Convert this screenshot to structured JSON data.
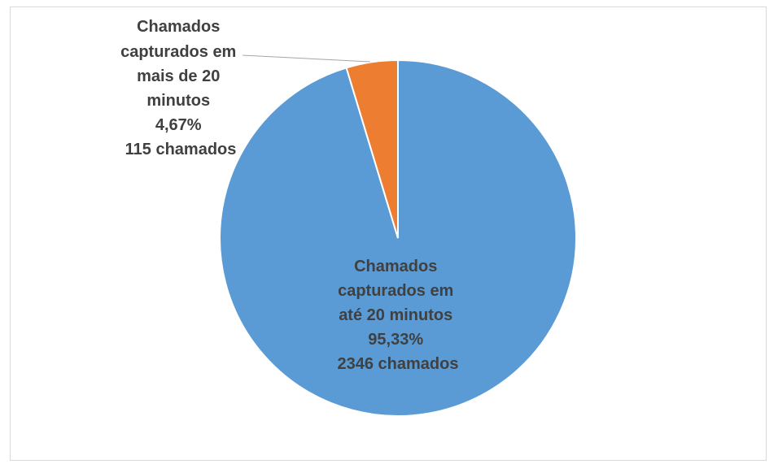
{
  "chart_data": {
    "type": "pie",
    "title": "",
    "slices": [
      {
        "key": "within",
        "value": 2346,
        "percent": 95.33,
        "color": "#5b9bd5",
        "label_lines": [
          "Chamados",
          "capturados em",
          "até 20 minutos",
          "95,33%",
          "2346 chamados"
        ]
      },
      {
        "key": "over",
        "value": 115,
        "percent": 4.67,
        "color": "#ed7d31",
        "label_lines": [
          "Chamados",
          "capturados em",
          "mais de 20",
          "minutos",
          "4,67%",
          "115 chamados"
        ]
      }
    ],
    "legend": "none",
    "data_labels": "category, percent, value"
  }
}
